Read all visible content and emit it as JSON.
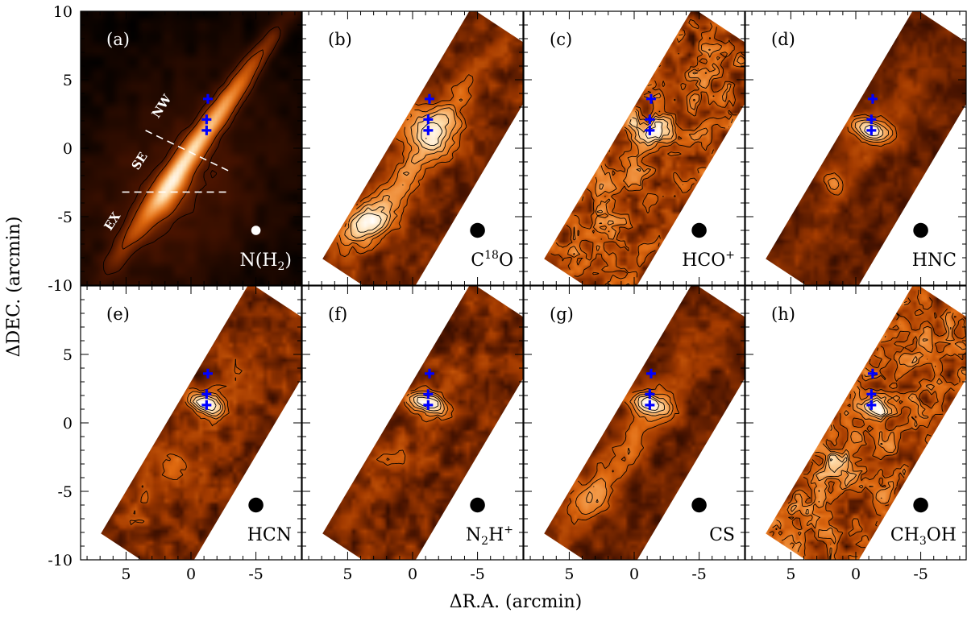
{
  "chart_data": {
    "type": "heatmap",
    "xlabel": "ΔR.A. (arcmin)",
    "ylabel": "ΔDEC. (arcmin)",
    "xlim": [
      8.5,
      -8.5
    ],
    "ylim": [
      -10,
      10
    ],
    "xticks": [
      5,
      0,
      -5
    ],
    "yticks": [
      10,
      5,
      0,
      -5,
      -10
    ],
    "colormap": [
      "#000000",
      "#4a1400",
      "#a23a00",
      "#e06a10",
      "#f5a050",
      "#ffe0b0",
      "#ffffff"
    ],
    "marker_color": "#0000ff",
    "markers": [
      {
        "x": -1.3,
        "y": 3.6
      },
      {
        "x": -1.2,
        "y": 2.1
      },
      {
        "x": -1.2,
        "y": 1.3
      }
    ],
    "beam": {
      "x": -5.0,
      "y": -6.0,
      "radius": 0.5
    },
    "region_labels": [
      "NW",
      "SE",
      "EX"
    ],
    "dividers": [
      {
        "from": [
          3.5,
          1.3
        ],
        "to": [
          -3.0,
          -1.7
        ]
      },
      {
        "from": [
          5.3,
          -3.2
        ],
        "to": [
          -3.0,
          -3.2
        ]
      }
    ],
    "panels": [
      {
        "label": "(a)",
        "molecule": "N(H",
        "sub": "2",
        "sup": "",
        "tail": ")"
      },
      {
        "label": "(b)",
        "molecule": "C",
        "sub": "",
        "sup": "18",
        "tail": "O"
      },
      {
        "label": "(c)",
        "molecule": "HCO",
        "sub": "",
        "sup": "+",
        "tail": ""
      },
      {
        "label": "(d)",
        "molecule": "HNC",
        "sub": "",
        "sup": "",
        "tail": ""
      },
      {
        "label": "(e)",
        "molecule": "HCN",
        "sub": "",
        "sup": "",
        "tail": ""
      },
      {
        "label": "(f)",
        "molecule": "N",
        "sub": "2",
        "sup": "",
        "tail": "H",
        "sup2": "+"
      },
      {
        "label": "(g)",
        "molecule": "CS",
        "sub": "",
        "sup": "",
        "tail": ""
      },
      {
        "label": "(h)",
        "molecule": "CH",
        "sub": "3",
        "sup": "",
        "tail": "OH"
      }
    ]
  }
}
